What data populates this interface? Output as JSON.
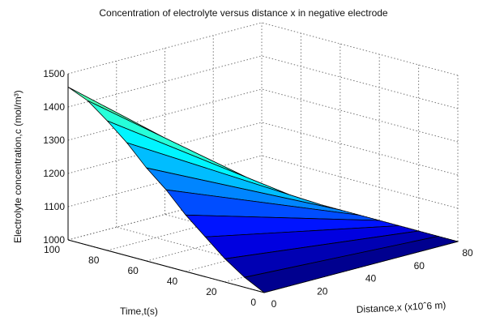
{
  "chart_data": {
    "type": "surface",
    "title": "Concentration of electrolyte versus distance x in negative electrode",
    "xlabel": "Distance,x (x10ˆ6 m)",
    "ylabel": "Time,t(s)",
    "zlabel": "Electrolyte concentration,c (mol/m³)",
    "xlim": [
      0,
      80
    ],
    "ylim": [
      0,
      100
    ],
    "zlim": [
      1000,
      1500
    ],
    "x_ticks": [
      "0",
      "20",
      "40",
      "60",
      "80"
    ],
    "y_ticks": [
      "0",
      "20",
      "40",
      "60",
      "80",
      "100"
    ],
    "z_ticks": [
      "1000",
      "1100",
      "1200",
      "1300",
      "1400",
      "1500"
    ],
    "grid": true,
    "colormap": "jet",
    "surface_rows": [
      {
        "t": 100,
        "c": [
          1460,
          1000
        ]
      },
      {
        "t": 90,
        "c": [
          1435,
          1000
        ]
      },
      {
        "t": 80,
        "c": [
          1390,
          1000
        ]
      },
      {
        "t": 70,
        "c": [
          1340,
          1000
        ]
      },
      {
        "t": 60,
        "c": [
          1280,
          1000
        ]
      },
      {
        "t": 50,
        "c": [
          1230,
          1000
        ]
      },
      {
        "t": 40,
        "c": [
          1170,
          1000
        ]
      },
      {
        "t": 30,
        "c": [
          1120,
          1000
        ]
      },
      {
        "t": 20,
        "c": [
          1070,
          1000
        ]
      },
      {
        "t": 10,
        "c": [
          1030,
          1000
        ]
      },
      {
        "t": 0,
        "c": [
          1000,
          1000
        ]
      }
    ],
    "surface_x": [
      0,
      80
    ]
  }
}
